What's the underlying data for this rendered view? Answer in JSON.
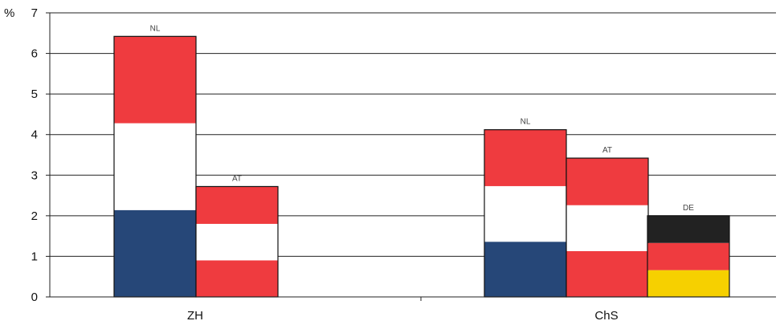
{
  "chart_data": {
    "type": "bar",
    "stacked": true,
    "ylabel": "%",
    "ylim": [
      0,
      7
    ],
    "yticks": [
      "0",
      "1",
      "2",
      "3",
      "4",
      "5",
      "6",
      "7"
    ],
    "grid": true,
    "categories": [
      "ZH",
      "ChS"
    ],
    "bars": [
      {
        "category": "ZH",
        "label": "NL",
        "total": 6.42,
        "segments": [
          {
            "value": 2.14,
            "color": "#264778"
          },
          {
            "value": 2.14,
            "color": "#ffffff"
          },
          {
            "value": 2.14,
            "color": "#ef3b3f"
          }
        ]
      },
      {
        "category": "ZH",
        "label": "AT",
        "total": 2.72,
        "segments": [
          {
            "value": 0.9,
            "color": "#ef3b3f"
          },
          {
            "value": 0.9,
            "color": "#ffffff"
          },
          {
            "value": 0.92,
            "color": "#ef3b3f"
          }
        ]
      },
      {
        "category": "ChS",
        "label": "NL",
        "total": 4.12,
        "segments": [
          {
            "value": 1.36,
            "color": "#264778"
          },
          {
            "value": 1.37,
            "color": "#ffffff"
          },
          {
            "value": 1.39,
            "color": "#ef3b3f"
          }
        ]
      },
      {
        "category": "ChS",
        "label": "AT",
        "total": 3.42,
        "segments": [
          {
            "value": 1.13,
            "color": "#ef3b3f"
          },
          {
            "value": 1.13,
            "color": "#ffffff"
          },
          {
            "value": 1.16,
            "color": "#ef3b3f"
          }
        ]
      },
      {
        "category": "ChS",
        "label": "DE",
        "total": 2.0,
        "segments": [
          {
            "value": 0.66,
            "color": "#f6d000"
          },
          {
            "value": 0.67,
            "color": "#ef3b3f"
          },
          {
            "value": 0.67,
            "color": "#222222"
          }
        ]
      }
    ]
  }
}
